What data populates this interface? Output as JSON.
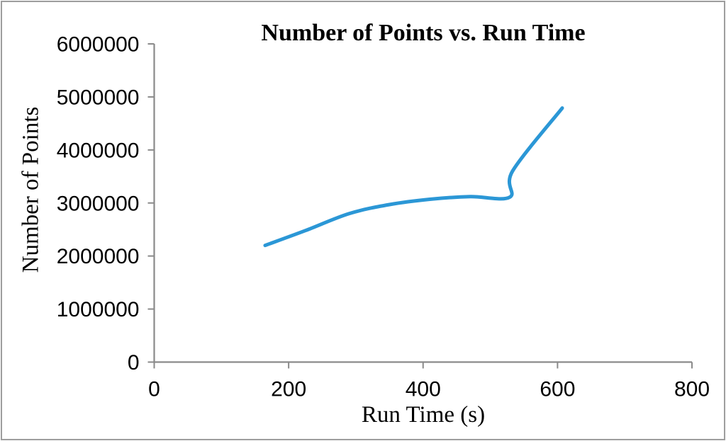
{
  "chart_data": {
    "type": "line",
    "title": "Number of Points vs. Run Time",
    "xlabel": "Run Time (s)",
    "ylabel": "Number of Points",
    "xlim": [
      0,
      800
    ],
    "ylim": [
      0,
      6000000
    ],
    "x_ticks": [
      0,
      200,
      400,
      600,
      800
    ],
    "y_ticks": [
      0,
      1000000,
      2000000,
      3000000,
      4000000,
      5000000,
      6000000
    ],
    "grid": false,
    "legend": false,
    "smooth": true,
    "line_color": "#2B97D6",
    "axis_color": "#8A8A8A",
    "series": [
      {
        "points": [
          {
            "x": 165,
            "y": 2200000
          },
          {
            "x": 225,
            "y": 2480000
          },
          {
            "x": 290,
            "y": 2800000
          },
          {
            "x": 350,
            "y": 2970000
          },
          {
            "x": 410,
            "y": 3070000
          },
          {
            "x": 470,
            "y": 3120000
          },
          {
            "x": 529,
            "y": 3110000
          },
          {
            "x": 533,
            "y": 3600000
          },
          {
            "x": 607,
            "y": 4790000
          }
        ]
      }
    ]
  }
}
